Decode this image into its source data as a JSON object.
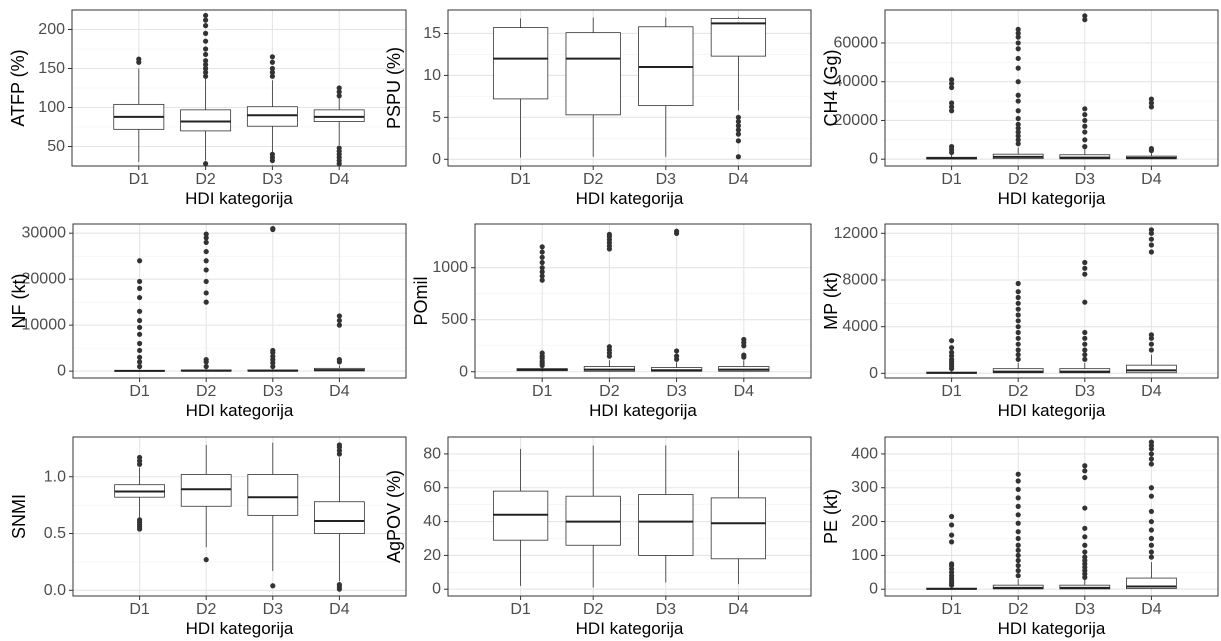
{
  "chart_data": [
    {
      "type": "box",
      "ylabel": "ATFP (%)",
      "xlabel": "HDI kategorija",
      "categories": [
        "D1",
        "D2",
        "D3",
        "D4"
      ],
      "yticks": [
        50,
        100,
        150,
        200
      ],
      "ylim": [
        25,
        225
      ],
      "boxes": [
        {
          "min": 30,
          "q1": 72,
          "median": 88,
          "q3": 104,
          "max": 150,
          "outliers": [
            158,
            162
          ]
        },
        {
          "min": 32,
          "q1": 70,
          "median": 82,
          "q3": 97,
          "max": 137,
          "outliers": [
            28,
            140,
            145,
            150,
            155,
            160,
            168,
            175,
            185,
            195,
            205,
            212,
            218
          ]
        },
        {
          "min": 42,
          "q1": 76,
          "median": 90,
          "q3": 101,
          "max": 135,
          "outliers": [
            32,
            36,
            40,
            140,
            145,
            150,
            158,
            165
          ]
        },
        {
          "min": 52,
          "q1": 82,
          "median": 88,
          "q3": 97,
          "max": 112,
          "outliers": [
            28,
            32,
            36,
            40,
            44,
            48,
            115,
            120,
            125
          ]
        }
      ]
    },
    {
      "type": "box",
      "ylabel": "PSPU (%)",
      "xlabel": "HDI kategorija",
      "categories": [
        "D1",
        "D2",
        "D3",
        "D4"
      ],
      "yticks": [
        0,
        5,
        10,
        15
      ],
      "ylim": [
        -0.8,
        17.8
      ],
      "boxes": [
        {
          "min": 0.2,
          "q1": 7.2,
          "median": 12,
          "q3": 15.7,
          "max": 16.8,
          "outliers": []
        },
        {
          "min": 0.3,
          "q1": 5.3,
          "median": 12,
          "q3": 15.1,
          "max": 16.9,
          "outliers": []
        },
        {
          "min": 0.3,
          "q1": 6.4,
          "median": 11,
          "q3": 15.8,
          "max": 16.9,
          "outliers": []
        },
        {
          "min": 5.8,
          "q1": 12.3,
          "median": 16.2,
          "q3": 16.8,
          "max": 17,
          "outliers": [
            0.3,
            2.2,
            3.0,
            3.5,
            4.0,
            4.5,
            5.0
          ]
        }
      ]
    },
    {
      "type": "box",
      "ylabel": "CH4 (Gg)",
      "xlabel": "HDI kategorija",
      "categories": [
        "D1",
        "D2",
        "D3",
        "D4"
      ],
      "yticks": [
        0,
        20000,
        40000,
        60000
      ],
      "ylim": [
        -3500,
        77000
      ],
      "boxes": [
        {
          "min": 0,
          "q1": 100,
          "median": 500,
          "q3": 1000,
          "max": 2500,
          "outliers": [
            3500,
            5000,
            6500,
            25000,
            27000,
            29000,
            37000,
            39000,
            41000
          ]
        },
        {
          "min": 0,
          "q1": 300,
          "median": 1200,
          "q3": 2600,
          "max": 6000,
          "outliers": [
            8000,
            10000,
            12000,
            14000,
            16000,
            18000,
            21000,
            25000,
            30000,
            33000,
            40000,
            47000,
            52000,
            57000,
            60000,
            63000,
            65000,
            67000
          ]
        },
        {
          "min": 0,
          "q1": 200,
          "median": 800,
          "q3": 2300,
          "max": 5000,
          "outliers": [
            6500,
            10000,
            14000,
            17000,
            20000,
            23000,
            26000,
            72000,
            74000
          ]
        },
        {
          "min": 0,
          "q1": 200,
          "median": 700,
          "q3": 1600,
          "max": 3200,
          "outliers": [
            4500,
            5500,
            27000,
            29000,
            31000
          ]
        }
      ]
    },
    {
      "type": "box",
      "ylabel": "NF (kt)",
      "xlabel": "HDI kategorija",
      "categories": [
        "D1",
        "D2",
        "D3",
        "D4"
      ],
      "yticks": [
        0,
        10000,
        20000,
        30000
      ],
      "ylim": [
        -1500,
        32000
      ],
      "boxes": [
        {
          "min": 0,
          "q1": 10,
          "median": 50,
          "q3": 150,
          "max": 350,
          "outliers": [
            1000,
            2000,
            3000,
            4500,
            6000,
            8000,
            9500,
            11000,
            13000,
            16000,
            18000,
            19500,
            24000
          ]
        },
        {
          "min": 0,
          "q1": 20,
          "median": 80,
          "q3": 250,
          "max": 500,
          "outliers": [
            1000,
            2000,
            2500,
            15000,
            17000,
            19500,
            22000,
            24000,
            26000,
            28000,
            29000,
            29800
          ]
        },
        {
          "min": 0,
          "q1": 20,
          "median": 80,
          "q3": 250,
          "max": 500,
          "outliers": [
            1000,
            1800,
            2500,
            3200,
            4000,
            4500,
            30800,
            31000
          ]
        },
        {
          "min": 0,
          "q1": 50,
          "median": 200,
          "q3": 600,
          "max": 1200,
          "outliers": [
            2000,
            2500,
            10000,
            11000,
            12000
          ]
        }
      ]
    },
    {
      "type": "box",
      "ylabel": "POmil",
      "xlabel": "HDI kategorija",
      "categories": [
        "D1",
        "D2",
        "D3",
        "D4"
      ],
      "yticks": [
        0,
        500,
        1000
      ],
      "ylim": [
        -60,
        1420
      ],
      "boxes": [
        {
          "min": 0,
          "q1": 10,
          "median": 20,
          "q3": 30,
          "max": 45,
          "outliers": [
            60,
            80,
            100,
            130,
            150,
            180,
            880,
            920,
            960,
            1000,
            1050,
            1100,
            1150,
            1200
          ]
        },
        {
          "min": 0,
          "q1": 5,
          "median": 20,
          "q3": 50,
          "max": 110,
          "outliers": [
            150,
            180,
            210,
            240,
            1180,
            1210,
            1240,
            1270,
            1300,
            1320
          ]
        },
        {
          "min": 0,
          "q1": 5,
          "median": 15,
          "q3": 40,
          "max": 90,
          "outliers": [
            120,
            150,
            200,
            1330,
            1350
          ]
        },
        {
          "min": 0,
          "q1": 5,
          "median": 20,
          "q3": 50,
          "max": 110,
          "outliers": [
            140,
            160,
            250,
            280,
            310
          ]
        }
      ]
    },
    {
      "type": "box",
      "ylabel": "MP (kt)",
      "xlabel": "HDI kategorija",
      "categories": [
        "D1",
        "D2",
        "D3",
        "D4"
      ],
      "yticks": [
        0,
        4000,
        8000,
        12000
      ],
      "ylim": [
        -400,
        12800
      ],
      "boxes": [
        {
          "min": 0,
          "q1": 10,
          "median": 40,
          "q3": 100,
          "max": 250,
          "outliers": [
            400,
            600,
            800,
            1000,
            1200,
            1500,
            1800,
            2200,
            2800
          ]
        },
        {
          "min": 0,
          "q1": 50,
          "median": 150,
          "q3": 400,
          "max": 900,
          "outliers": [
            1200,
            1600,
            2000,
            2500,
            3000,
            3500,
            4000,
            4500,
            5000,
            5500,
            6000,
            6500,
            7000,
            7700
          ]
        },
        {
          "min": 0,
          "q1": 50,
          "median": 150,
          "q3": 400,
          "max": 900,
          "outliers": [
            1200,
            1600,
            2000,
            2500,
            3000,
            3500,
            6100,
            8500,
            9000,
            9500
          ]
        },
        {
          "min": 0,
          "q1": 50,
          "median": 250,
          "q3": 700,
          "max": 1600,
          "outliers": [
            2000,
            2500,
            3000,
            3300,
            10400,
            11000,
            11500,
            12000,
            12300
          ]
        }
      ]
    },
    {
      "type": "box",
      "ylabel": "SNMI",
      "xlabel": "HDI kategorija",
      "categories": [
        "D1",
        "D2",
        "D3",
        "D4"
      ],
      "yticks": [
        0.0,
        0.5,
        1.0
      ],
      "ylim": [
        -0.05,
        1.35
      ],
      "boxes": [
        {
          "min": 0.64,
          "q1": 0.82,
          "median": 0.87,
          "q3": 0.93,
          "max": 1.08,
          "outliers": [
            0.54,
            0.56,
            0.58,
            0.6,
            0.62,
            1.11,
            1.14,
            1.17
          ]
        },
        {
          "min": 0.38,
          "q1": 0.74,
          "median": 0.89,
          "q3": 1.02,
          "max": 1.28,
          "outliers": [
            0.27
          ]
        },
        {
          "min": 0.17,
          "q1": 0.66,
          "median": 0.82,
          "q3": 1.02,
          "max": 1.3,
          "outliers": [
            0.04
          ]
        },
        {
          "min": 0.08,
          "q1": 0.5,
          "median": 0.61,
          "q3": 0.78,
          "max": 1.17,
          "outliers": [
            0.01,
            0.03,
            0.05,
            1.2,
            1.23,
            1.26,
            1.28
          ]
        }
      ]
    },
    {
      "type": "box",
      "ylabel": "AgPOV (%)",
      "xlabel": "HDI kategorija",
      "categories": [
        "D1",
        "D2",
        "D3",
        "D4"
      ],
      "yticks": [
        0,
        20,
        40,
        60,
        80
      ],
      "ylim": [
        -4,
        90
      ],
      "boxes": [
        {
          "min": 2,
          "q1": 29,
          "median": 44,
          "q3": 58,
          "max": 83,
          "outliers": []
        },
        {
          "min": 1,
          "q1": 26,
          "median": 40,
          "q3": 55,
          "max": 85,
          "outliers": []
        },
        {
          "min": 4,
          "q1": 20,
          "median": 40,
          "q3": 56,
          "max": 85,
          "outliers": []
        },
        {
          "min": 3,
          "q1": 18,
          "median": 39,
          "q3": 54,
          "max": 82,
          "outliers": []
        }
      ]
    },
    {
      "type": "box",
      "ylabel": "PE (kt)",
      "xlabel": "HDI kategorija",
      "categories": [
        "D1",
        "D2",
        "D3",
        "D4"
      ],
      "yticks": [
        0,
        100,
        200,
        300,
        400
      ],
      "ylim": [
        -20,
        450
      ],
      "boxes": [
        {
          "min": 0,
          "q1": 0,
          "median": 1,
          "q3": 3,
          "max": 8,
          "outliers": [
            12,
            18,
            25,
            32,
            40,
            50,
            60,
            70,
            75,
            140,
            160,
            190,
            215
          ]
        },
        {
          "min": 0,
          "q1": 1,
          "median": 4,
          "q3": 12,
          "max": 30,
          "outliers": [
            40,
            55,
            70,
            85,
            100,
            115,
            130,
            150,
            170,
            195,
            220,
            245,
            270,
            295,
            320,
            340
          ]
        },
        {
          "min": 0,
          "q1": 1,
          "median": 4,
          "q3": 12,
          "max": 28,
          "outliers": [
            35,
            45,
            55,
            65,
            75,
            85,
            95,
            110,
            130,
            155,
            180,
            240,
            330,
            350,
            365
          ]
        },
        {
          "min": 0,
          "q1": 2,
          "median": 8,
          "q3": 33,
          "max": 80,
          "outliers": [
            95,
            110,
            130,
            150,
            175,
            200,
            230,
            275,
            300,
            370,
            385,
            400,
            415,
            425,
            435
          ]
        }
      ]
    }
  ]
}
